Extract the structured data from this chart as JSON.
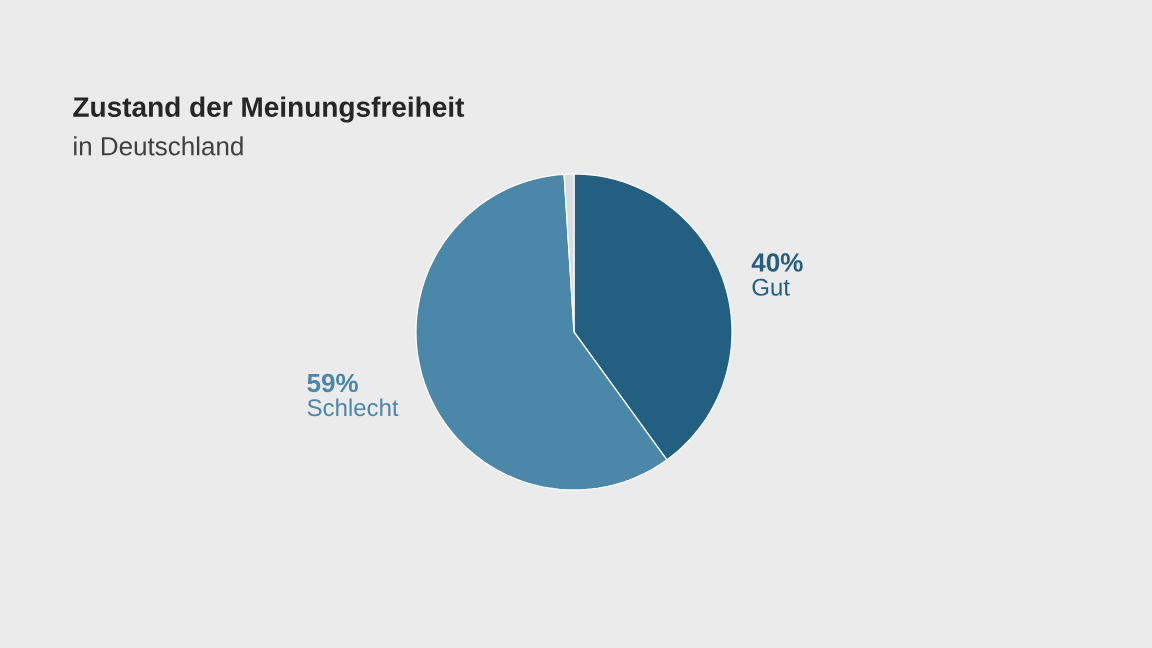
{
  "chart_data": {
    "type": "pie",
    "title": "Zustand der Meinungsfreiheit",
    "subtitle": "in Deutschland",
    "categories": [
      "Gut",
      "Schlecht",
      null
    ],
    "values": [
      40,
      59,
      1
    ],
    "colors": [
      "#235f80",
      "#4b87a8",
      "#d9dcdf"
    ],
    "value_labels": [
      "40%",
      "59%",
      null
    ]
  }
}
